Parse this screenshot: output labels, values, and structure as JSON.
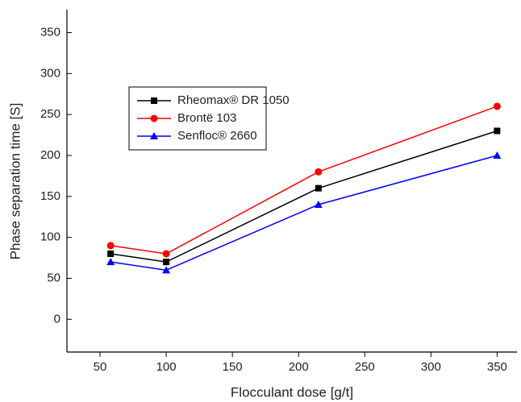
{
  "chart_data": {
    "type": "line",
    "xlabel": "Flocculant dose [g/t]",
    "ylabel": "Phase separation time [S]",
    "x": [
      58,
      100,
      215,
      350
    ],
    "series": [
      {
        "name": "Rheomax® DR 1050",
        "color": "#000000",
        "marker": "square",
        "values": [
          80,
          70,
          160,
          230
        ]
      },
      {
        "name": "Brontë 103",
        "color": "#ff0000",
        "marker": "circle",
        "values": [
          90,
          80,
          180,
          260
        ]
      },
      {
        "name": "Senfloc® 2660",
        "color": "#0000ff",
        "marker": "triangle",
        "values": [
          70,
          60,
          140,
          200
        ]
      }
    ],
    "xlim": [
      25,
      365
    ],
    "xticks": [
      50,
      100,
      150,
      200,
      250,
      300,
      350
    ],
    "ylim": [
      -40,
      378
    ],
    "yticks": [
      0,
      50,
      100,
      150,
      200,
      250,
      300,
      350
    ],
    "legend": "upper left",
    "grid": false
  }
}
